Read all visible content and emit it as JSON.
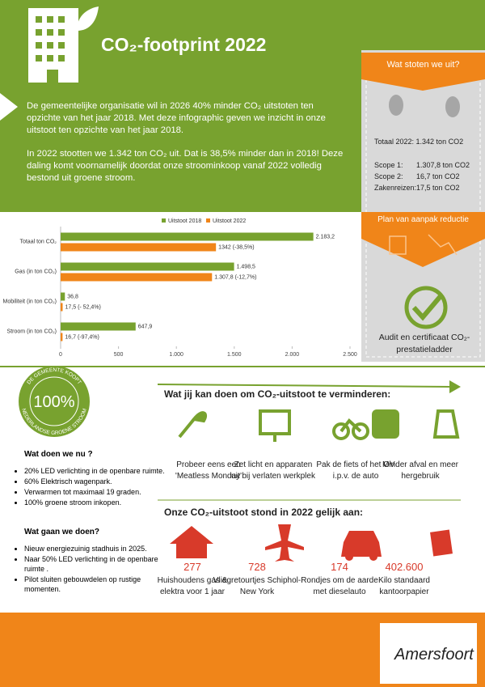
{
  "header": {
    "title": "CO₂-footprint 2022"
  },
  "intro": {
    "paragraphs": [
      "De gemeentelijke organisatie wil in 2026 40% minder CO₂ uitstoten ten opzichte van het jaar 2018. Met deze infographic geven we inzicht in onze uitstoot ten opzichte van het jaar 2018.",
      "In 2022 stootten we 1.342 ton CO₂ uit. Dat is 38,5% minder dan in 2018! Deze daling komt voornamelijk doordat onze stroominkoop vanaf 2022 volledig bestond uit groene stroom."
    ]
  },
  "sidebar": {
    "title": "Wat stoten we uit?",
    "total": "Totaal 2022:  1.342 ton CO2",
    "scopes": [
      [
        "Scope 1:",
        "1.307,8  ton CO2"
      ],
      [
        "Scope 2:",
        "16,7 ton CO2"
      ],
      [
        "Zakenreizen:",
        "17,5 ton CO2"
      ]
    ],
    "plan": "Plan van aanpak reductie",
    "audit": "Audit en certificaat CO₂-prestatieladder"
  },
  "chart_data": {
    "type": "bar",
    "orientation": "horizontal",
    "categories": [
      "Totaal ton CO₂",
      "Gas (in ton CO₂)",
      "Mobiliteit (in ton CO₂)",
      "Stroom (in ton CO₂)"
    ],
    "series": [
      {
        "name": "Uitstoot 2018",
        "color": "#78a22f",
        "values": [
          2183.2,
          1498.5,
          36.8,
          647.9
        ],
        "value_labels": [
          "2.183,2",
          "1.498,5",
          "36,8",
          "647,9"
        ]
      },
      {
        "name": "Uitstoot 2022",
        "color": "#f08519",
        "values": [
          1342,
          1307.8,
          17.5,
          16.7
        ],
        "value_labels": [
          "1342 (-38,5%)",
          "1.307,8 (-12,7%)",
          "17,5 (- 52,4%)",
          "16,7 (-97,4%)"
        ]
      }
    ],
    "xlim": [
      0,
      2500
    ],
    "xticks": [
      0,
      500,
      {
        "value": 1000,
        "label": "1.000"
      },
      {
        "value": 1500,
        "label": "1.500"
      },
      {
        "value": 2000,
        "label": "2.000"
      },
      {
        "value": 2500,
        "label": "2.500"
      }
    ],
    "grid": false,
    "legend": "top"
  },
  "badge": {
    "top": "DE GEMEENTE KOOPT",
    "center": "100%",
    "bottom": "NEDERLANDSE GROENE STROOM"
  },
  "now": {
    "title": "Wat doen we nu ?",
    "items": [
      "20% LED verlichting in de openbare ruimte.",
      "60% Elektrisch wagenpark.",
      "Verwarmen tot maximaal 19 graden.",
      "100% groene stroom inkopen."
    ]
  },
  "next": {
    "title": "Wat gaan we doen?",
    "items": [
      "Nieuw energiezuinig stadhuis in 2025.",
      "Naar 50% LED verlichting in de openbare ruimte .",
      "Pilot sluiten gebouwdelen op rustige momenten."
    ]
  },
  "actions": {
    "title": "Wat jij kan doen om CO₂-uitstoot te verminderen:",
    "items": [
      "Probeer eens een 'Meatless Monday'",
      "Zet licht en apparaten uit bij verlaten werkplek",
      "Pak de fiets of het OV  i.p.v. de auto",
      "Minder afval en meer hergebruik"
    ]
  },
  "equivalents": {
    "title": "Onze CO₂-uitstoot stond in 2022 gelijk aan:",
    "items": [
      {
        "number": "277",
        "label": "Huishoudens gas & elektra voor 1 jaar"
      },
      {
        "number": "728",
        "label": "Vliegretourtjes Schiphol-New York"
      },
      {
        "number": "174",
        "label": "Rondjes om de aarde met dieselauto"
      },
      {
        "number": "402.600",
        "label": "Kilo standaard kantoorpapier"
      }
    ]
  },
  "footer": {
    "logo": "Amersfoort"
  }
}
